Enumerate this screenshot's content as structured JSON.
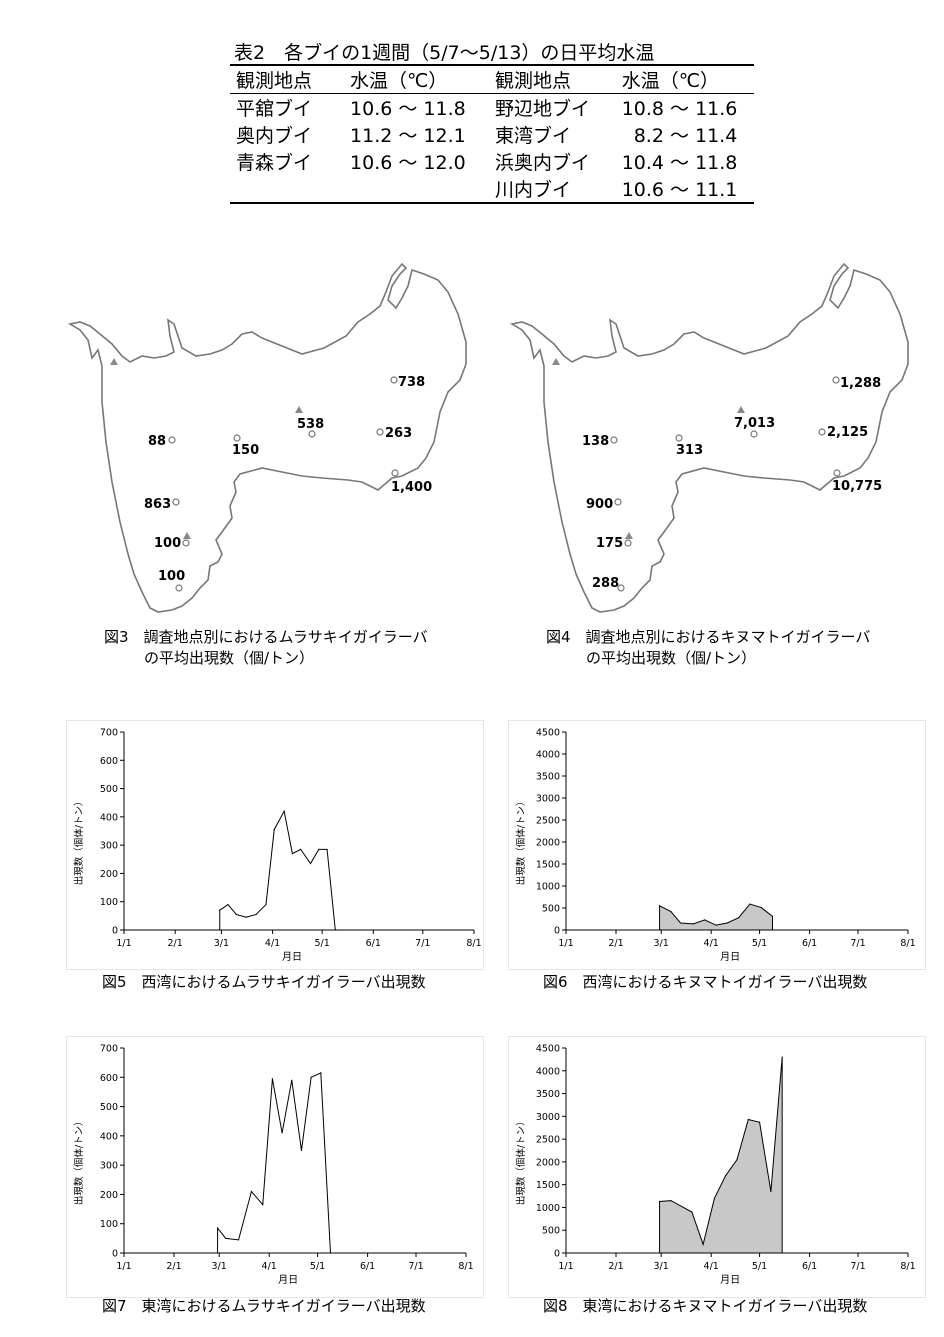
{
  "table2": {
    "title": "表2　各ブイの1週間（5/7～5/13）の日平均水温",
    "headers": [
      "観測地点",
      "水温（℃）",
      "観測地点",
      "水温（℃）"
    ],
    "rows": [
      [
        "平舘ブイ",
        "10.6 ～ 11.8",
        "野辺地ブイ",
        "10.8 ～ 11.6"
      ],
      [
        "奥内ブイ",
        "11.2 ～ 12.1",
        "東湾ブイ",
        "8.2 ～ 11.4"
      ],
      [
        "青森ブイ",
        "10.6 ～ 12.0",
        "浜奥内ブイ",
        "10.4 ～ 11.8"
      ],
      [
        "",
        "",
        "川内ブイ",
        "10.6 ～ 11.1"
      ]
    ]
  },
  "fig3": {
    "caption_line1": "図3　調査地点別におけるムラサキイガイラーバ",
    "caption_line2": "の平均出現数（個/トン）",
    "values": [
      "88",
      "863",
      "100",
      "100",
      "150",
      "538",
      "738",
      "263",
      "1,400"
    ]
  },
  "fig4": {
    "caption_line1": "図4　調査地点別におけるキヌマトイガイラーバ",
    "caption_line2": "の平均出現数（個/トン）",
    "values": [
      "138",
      "900",
      "175",
      "288",
      "313",
      "7,013",
      "1,288",
      "2,125",
      "10,775"
    ]
  },
  "chart_data": [
    {
      "id": "fig5",
      "type": "line",
      "title": "図5　西湾におけるムラサキイガイラーバ出現数",
      "xlabel": "月日",
      "ylabel": "出現数（個体/トン）",
      "x_ticks": [
        "1/1",
        "2/1",
        "3/1",
        "4/1",
        "5/1",
        "6/1",
        "7/1",
        "8/1"
      ],
      "ylim": [
        0,
        700
      ],
      "y_ticks": [
        0,
        100,
        200,
        300,
        400,
        500,
        600,
        700
      ],
      "filled": false,
      "x": [
        58,
        63,
        68,
        74,
        80,
        86,
        91,
        97,
        102,
        107,
        113,
        118,
        123,
        128,
        129
      ],
      "values": [
        70,
        90,
        55,
        45,
        55,
        90,
        355,
        420,
        270,
        285,
        235,
        285,
        285,
        0,
        0
      ]
    },
    {
      "id": "fig6",
      "type": "area",
      "title": "図6　西湾におけるキヌマトイガイラーバ出現数",
      "xlabel": "月日",
      "ylabel": "出現数（個体/トン）",
      "x_ticks": [
        "1/1",
        "2/1",
        "3/1",
        "4/1",
        "5/1",
        "6/1",
        "7/1",
        "8/1"
      ],
      "ylim": [
        0,
        4500
      ],
      "y_ticks": [
        0,
        500,
        1000,
        1500,
        2000,
        2500,
        3000,
        3500,
        4000,
        4500
      ],
      "filled": true,
      "x": [
        58,
        65,
        71,
        79,
        86,
        93,
        100,
        107,
        114,
        121,
        128
      ],
      "values": [
        550,
        420,
        160,
        140,
        230,
        110,
        160,
        280,
        590,
        510,
        310
      ]
    },
    {
      "id": "fig7",
      "type": "line",
      "title": "図7　東湾におけるムラサキイガイラーバ出現数",
      "xlabel": "月日",
      "ylabel": "出現数（個体/トン）",
      "x_ticks": [
        "1/1",
        "2/1",
        "3/1",
        "4/1",
        "5/1",
        "6/1",
        "7/1",
        "8/1"
      ],
      "ylim": [
        0,
        700
      ],
      "y_ticks": [
        0,
        100,
        200,
        300,
        400,
        500,
        600,
        700
      ],
      "filled": false,
      "x": [
        58,
        63,
        71,
        79,
        86,
        92,
        98,
        104,
        110,
        116,
        122,
        128
      ],
      "values": [
        85,
        50,
        45,
        210,
        165,
        595,
        410,
        590,
        350,
        600,
        615,
        0
      ]
    },
    {
      "id": "fig8",
      "type": "area",
      "title": "図8　東湾におけるキヌマトイガイラーバ出現数",
      "xlabel": "月日",
      "ylabel": "出現数（個体/トン）",
      "x_ticks": [
        "1/1",
        "2/1",
        "3/1",
        "4/1",
        "5/1",
        "6/1",
        "7/1",
        "8/1"
      ],
      "ylim": [
        0,
        4500
      ],
      "y_ticks": [
        0,
        500,
        1000,
        1500,
        2000,
        2500,
        3000,
        3500,
        4000,
        4500
      ],
      "filled": true,
      "x": [
        58,
        65,
        78,
        85,
        92,
        99,
        106,
        113,
        120,
        127,
        134
      ],
      "values": [
        1130,
        1150,
        900,
        190,
        1200,
        1700,
        2050,
        2930,
        2870,
        1350,
        4300
      ]
    }
  ]
}
